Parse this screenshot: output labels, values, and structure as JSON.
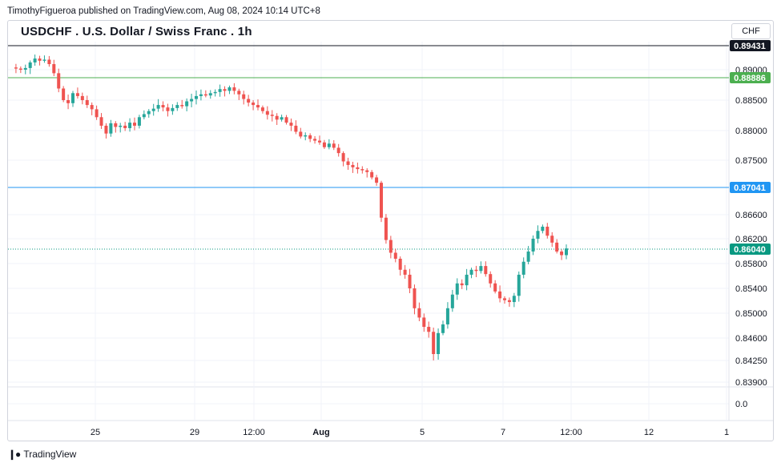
{
  "header": {
    "publisher_line": "TimothyFigueroa published on TradingView.com, Aug 08, 2024 10:14 UTC+8",
    "title": "USDCHF . U.S. Dollar / Swiss Franc . 1h",
    "currency": "CHF"
  },
  "footer": {
    "brand": "TradingView",
    "brand_icon": "tradingview-logo-icon"
  },
  "colors": {
    "up": "#26a69a",
    "down": "#ef5350",
    "green_line": "#4caf50",
    "blue_line": "#2196f3",
    "black_line": "#131722",
    "price_line": "#089981",
    "grid": "#f0f3fa"
  },
  "chart_data": {
    "type": "candlestick",
    "y_axis_ticks": [
      "0.89000",
      "0.88500",
      "0.88000",
      "0.87500",
      "0.86600",
      "0.86200",
      "0.85800",
      "0.85400",
      "0.85000",
      "0.84600",
      "0.84250",
      "0.83900",
      "0.0"
    ],
    "x_axis_ticks": [
      "25",
      "29",
      "12:00",
      "Aug",
      "5",
      "7",
      "12:00",
      "12",
      "1"
    ],
    "horizontal_lines": [
      {
        "label": "0.89431",
        "color": "black"
      },
      {
        "label": "0.88886",
        "color": "green"
      },
      {
        "label": "0.87041",
        "color": "blue"
      },
      {
        "label": "0.86040",
        "color": "teal",
        "style": "dotted",
        "current": true
      }
    ],
    "close_path": [
      0.8904,
      0.8902,
      0.89,
      0.8903,
      0.8913,
      0.892,
      0.8916,
      0.8918,
      0.891,
      0.8895,
      0.887,
      0.885,
      0.8845,
      0.8862,
      0.8857,
      0.885,
      0.8842,
      0.8835,
      0.8822,
      0.8808,
      0.8795,
      0.8812,
      0.8806,
      0.8808,
      0.8804,
      0.8813,
      0.8808,
      0.8822,
      0.8827,
      0.8832,
      0.8836,
      0.8842,
      0.8838,
      0.8832,
      0.8837,
      0.8842,
      0.884,
      0.8848,
      0.8852,
      0.8857,
      0.886,
      0.8858,
      0.8862,
      0.8864,
      0.8869,
      0.8866,
      0.8872,
      0.8866,
      0.886,
      0.8852,
      0.8846,
      0.8842,
      0.8838,
      0.8832,
      0.8826,
      0.8824,
      0.8818,
      0.8822,
      0.8813,
      0.8808,
      0.8798,
      0.879,
      0.8792,
      0.8786,
      0.8783,
      0.878,
      0.8772,
      0.8778,
      0.8771,
      0.8762,
      0.8748,
      0.8742,
      0.8738,
      0.8735,
      0.8733,
      0.873,
      0.8721,
      0.8712,
      0.8655,
      0.8618,
      0.8598,
      0.8588,
      0.857,
      0.8562,
      0.854,
      0.8508,
      0.8493,
      0.8478,
      0.847,
      0.8435,
      0.8468,
      0.8482,
      0.8508,
      0.853,
      0.8548,
      0.8545,
      0.8562,
      0.857,
      0.8568,
      0.8576,
      0.8563,
      0.8548,
      0.8535,
      0.8524,
      0.8521,
      0.8518,
      0.8528,
      0.8562,
      0.8583,
      0.86,
      0.862,
      0.8633,
      0.864,
      0.8625,
      0.8614,
      0.86,
      0.8594,
      0.8605
    ]
  }
}
